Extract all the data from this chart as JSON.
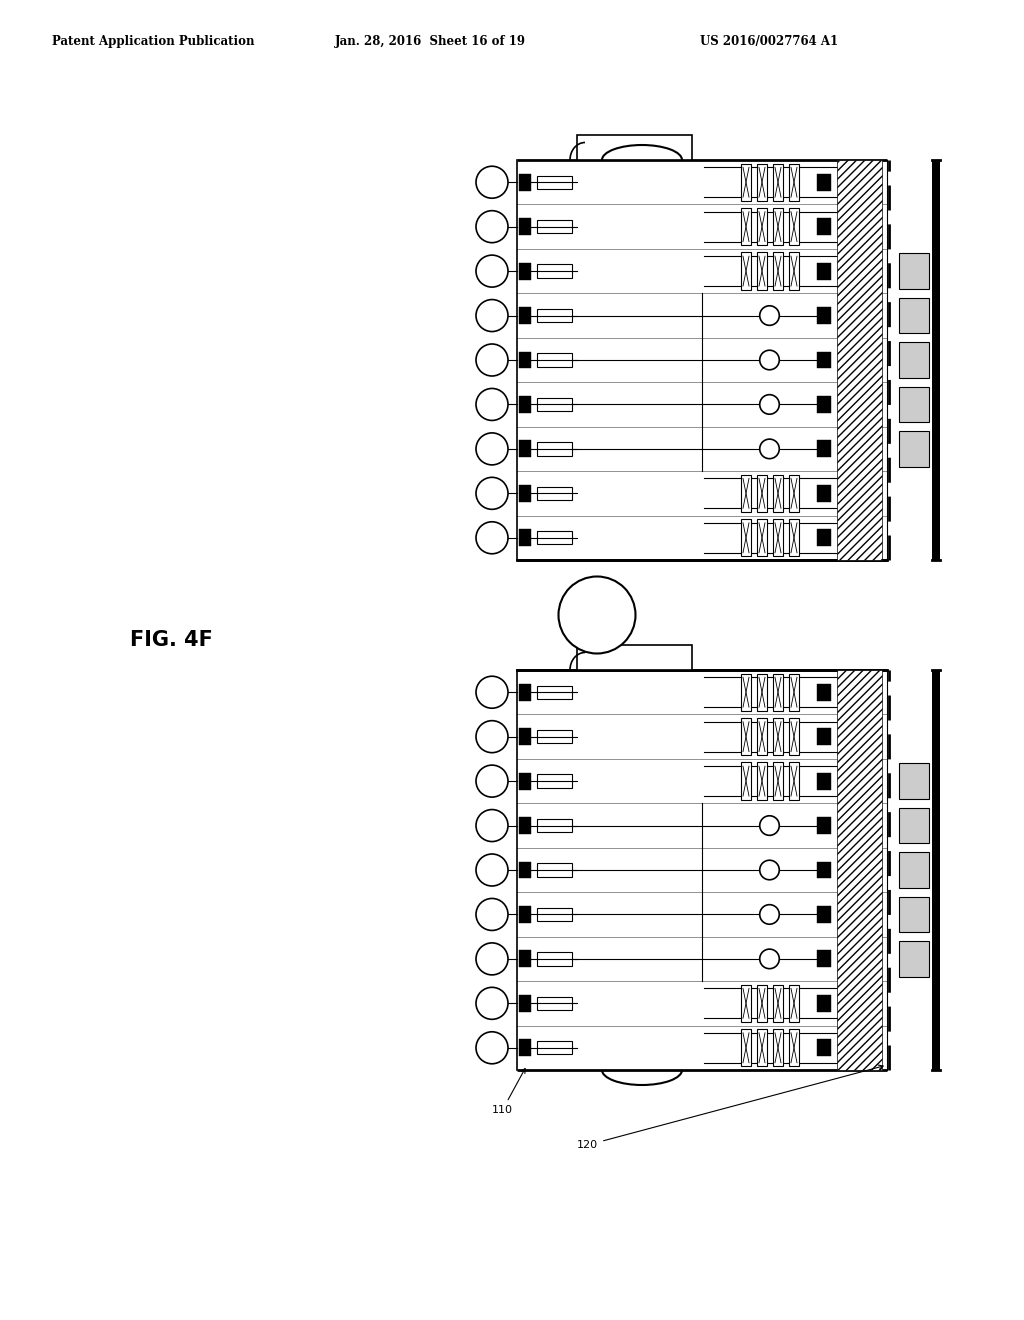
{
  "title_left": "Patent Application Publication",
  "title_center": "Jan. 28, 2016  Sheet 16 of 19",
  "title_right": "US 2016/0027764 A1",
  "fig_label": "FIG. 4F",
  "label_110": "110",
  "label_120": "120",
  "bg_color": "#ffffff",
  "line_color": "#000000",
  "gray_fill": "#cccccc",
  "n_layers": 9,
  "n_tsv_rows": 3,
  "n_via_rows": 6,
  "n_gray_squares": 5
}
